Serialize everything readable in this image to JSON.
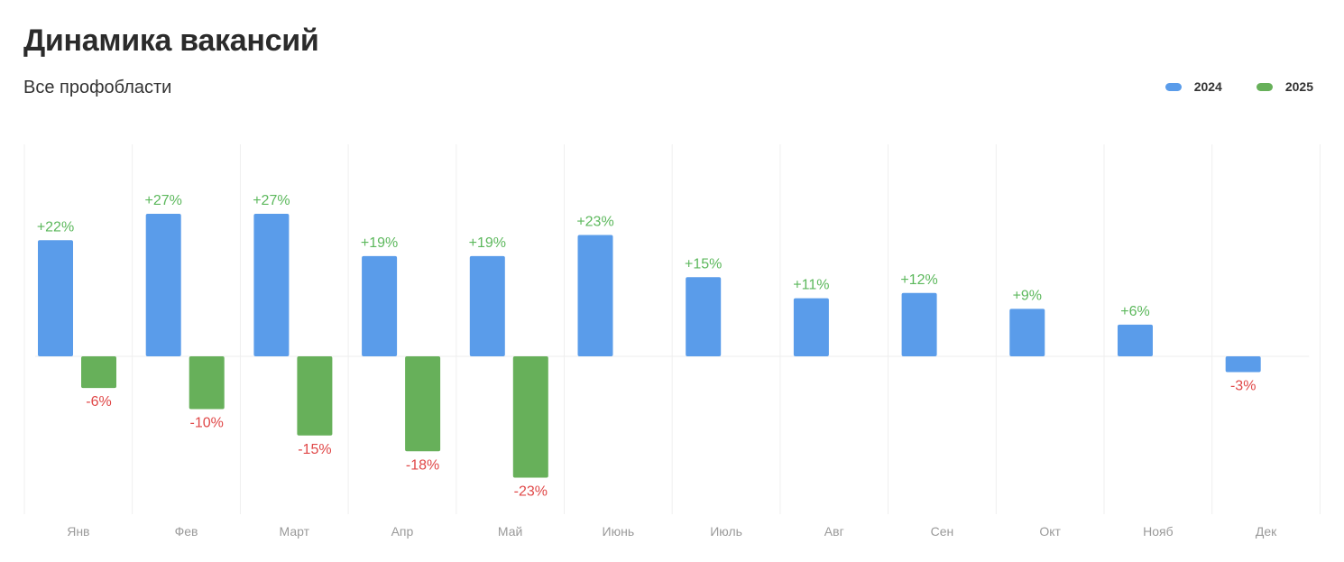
{
  "title": "Динамика вакансий",
  "subtitle": "Все профобласти",
  "colors": {
    "2024": "#5a9cea",
    "2025": "#67b05a",
    "positive_label": "#5cb85c",
    "negative_label": "#e04848"
  },
  "chart_data": {
    "type": "bar",
    "categories": [
      "Янв",
      "Фев",
      "Март",
      "Апр",
      "Май",
      "Июнь",
      "Июль",
      "Авг",
      "Сен",
      "Окт",
      "Нояб",
      "Дек"
    ],
    "series": [
      {
        "name": "2024",
        "values": [
          22,
          27,
          27,
          19,
          19,
          23,
          15,
          11,
          12,
          9,
          6,
          -3
        ],
        "labels": [
          "+22%",
          "+27%",
          "+27%",
          "+19%",
          "+19%",
          "+23%",
          "+15%",
          "+11%",
          "+12%",
          "+9%",
          "+6%",
          "-3%"
        ]
      },
      {
        "name": "2025",
        "values": [
          -6,
          -10,
          -15,
          -18,
          -23,
          null,
          null,
          null,
          null,
          null,
          null,
          null
        ],
        "labels": [
          "-6%",
          "-10%",
          "-15%",
          "-18%",
          "-23%",
          null,
          null,
          null,
          null,
          null,
          null,
          null
        ]
      }
    ],
    "unit": "%",
    "ylim": [
      -30,
      40
    ],
    "grid": "vertical",
    "legend": "top-right"
  }
}
